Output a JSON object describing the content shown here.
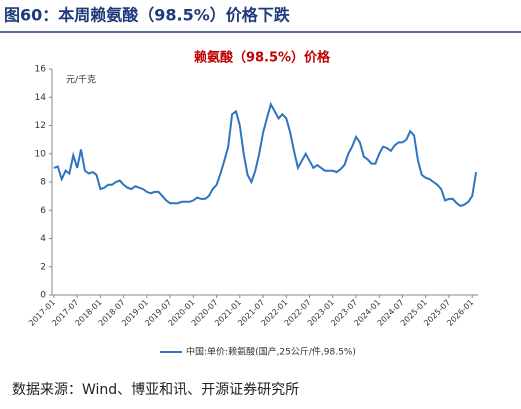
{
  "header": {
    "title": "图60：本周赖氨酸（98.5%）价格下跌"
  },
  "chart_data": {
    "type": "line",
    "title": "赖氨酸（98.5%）价格",
    "y_label": "元/千克",
    "x": [
      "2017-01",
      "2017-02",
      "2017-03",
      "2017-04",
      "2017-05",
      "2017-06",
      "2017-07",
      "2017-08",
      "2017-09",
      "2017-10",
      "2017-11",
      "2017-12",
      "2018-01",
      "2018-02",
      "2018-03",
      "2018-04",
      "2018-05",
      "2018-06",
      "2018-07",
      "2018-08",
      "2018-09",
      "2018-10",
      "2018-11",
      "2018-12",
      "2019-01",
      "2019-02",
      "2019-03",
      "2019-04",
      "2019-05",
      "2019-06",
      "2019-07",
      "2019-08",
      "2019-09",
      "2019-10",
      "2019-11",
      "2019-12",
      "2020-01",
      "2020-02",
      "2020-03",
      "2020-04",
      "2020-05",
      "2020-06",
      "2020-07",
      "2020-08",
      "2020-09",
      "2020-10",
      "2020-11",
      "2020-12",
      "2021-01",
      "2021-02",
      "2021-03",
      "2021-04",
      "2021-05",
      "2021-06",
      "2021-07",
      "2021-08",
      "2021-09",
      "2021-10",
      "2021-11",
      "2021-12",
      "2022-01",
      "2022-02",
      "2022-03",
      "2022-04",
      "2022-05",
      "2022-06",
      "2022-07",
      "2022-08",
      "2022-09",
      "2022-10",
      "2022-11",
      "2022-12",
      "2023-01",
      "2023-02",
      "2023-03",
      "2023-04",
      "2023-05",
      "2023-06",
      "2023-07",
      "2023-08",
      "2023-09",
      "2023-10",
      "2023-11",
      "2023-12",
      "2024-01",
      "2024-02",
      "2024-03",
      "2024-04",
      "2024-05",
      "2024-06",
      "2024-07",
      "2024-08",
      "2024-09",
      "2024-10",
      "2024-11",
      "2024-12",
      "2025-01",
      "2025-02",
      "2025-03",
      "2025-04",
      "2025-05",
      "2025-06",
      "2025-07",
      "2025-08",
      "2025-09",
      "2025-10",
      "2025-11",
      "2025-12",
      "2026-01",
      "2026-02"
    ],
    "series": [
      {
        "name": "中国:单价:赖氨酸(国产,25公斤/件,98.5%)",
        "color": "#2e75c0",
        "values": [
          9.0,
          9.1,
          8.2,
          8.8,
          8.6,
          9.9,
          9.0,
          10.3,
          8.8,
          8.6,
          8.7,
          8.5,
          7.5,
          7.6,
          7.8,
          7.8,
          8.0,
          8.1,
          7.8,
          7.6,
          7.5,
          7.7,
          7.6,
          7.5,
          7.3,
          7.2,
          7.3,
          7.3,
          7.0,
          6.7,
          6.5,
          6.5,
          6.5,
          6.6,
          6.6,
          6.6,
          6.7,
          6.9,
          6.8,
          6.8,
          7.0,
          7.5,
          7.8,
          8.6,
          9.5,
          10.5,
          12.8,
          13.0,
          12.0,
          10.0,
          8.5,
          8.0,
          8.8,
          10.0,
          11.5,
          12.5,
          13.5,
          13.0,
          12.5,
          12.8,
          12.5,
          11.5,
          10.2,
          9.0,
          9.5,
          10.0,
          9.5,
          9.0,
          9.2,
          9.0,
          8.8,
          8.8,
          8.8,
          8.7,
          8.9,
          9.2,
          10.0,
          10.5,
          11.2,
          10.8,
          9.8,
          9.6,
          9.3,
          9.3,
          10.0,
          10.5,
          10.4,
          10.2,
          10.6,
          10.8,
          10.8,
          11.0,
          11.6,
          11.3,
          9.5,
          8.5,
          8.3,
          8.2,
          8.0,
          7.8,
          7.5,
          6.7,
          6.8,
          6.8,
          6.5,
          6.3,
          6.4,
          6.6,
          7.0,
          8.7
        ]
      }
    ],
    "ylim": [
      0,
      16
    ],
    "yticks": [
      0,
      2,
      4,
      6,
      8,
      10,
      12,
      14,
      16
    ],
    "xticks": [
      "2017-01",
      "2017-07",
      "2018-01",
      "2018-07",
      "2019-01",
      "2019-07",
      "2020-01",
      "2020-07",
      "2021-01",
      "2021-07",
      "2022-01",
      "2022-07",
      "2023-01",
      "2023-07",
      "2024-01",
      "2024-07",
      "2025-01",
      "2025-07",
      "2026-01"
    ]
  },
  "source": "数据来源：Wind、博亚和讯、开源证券研究所"
}
